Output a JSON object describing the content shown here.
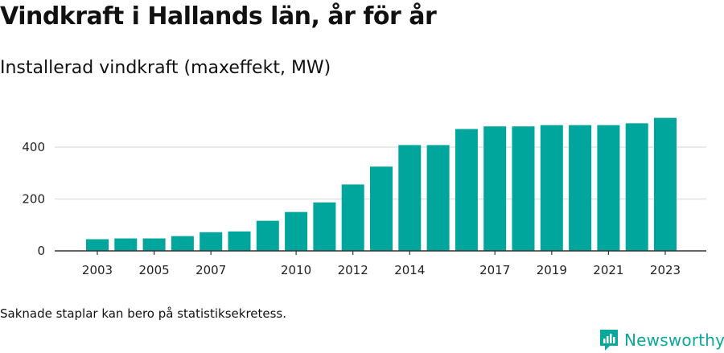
{
  "header": {
    "title": "Vindkraft i Hallands län, år för år",
    "subtitle": "Installerad vindkraft (maxeffekt, MW)"
  },
  "footer": {
    "note": "Saknade staplar kan bero på statistiksekretess.",
    "brand": "Newsworthy",
    "brand_icon": "newsworthy-logo-icon"
  },
  "colors": {
    "bar": "#00a69c",
    "grid": "#dddddd",
    "axis": "#333333",
    "brand": "#0aa89a"
  },
  "chart_data": {
    "type": "bar",
    "title": "Vindkraft i Hallands län, år för år",
    "subtitle": "Installerad vindkraft (maxeffekt, MW)",
    "xlabel": "",
    "ylabel": "",
    "categories": [
      2003,
      2004,
      2005,
      2006,
      2007,
      2008,
      2009,
      2010,
      2011,
      2012,
      2013,
      2014,
      2015,
      2016,
      2017,
      2018,
      2019,
      2020,
      2021,
      2022,
      2023
    ],
    "values": [
      45,
      48,
      48,
      57,
      72,
      75,
      116,
      150,
      187,
      256,
      325,
      408,
      408,
      470,
      480,
      480,
      485,
      485,
      485,
      492,
      513
    ],
    "xticks": [
      2003,
      2005,
      2007,
      2010,
      2012,
      2014,
      2017,
      2019,
      2021,
      2023
    ],
    "yticks": [
      0,
      200,
      400
    ],
    "ylim": [
      0,
      520
    ],
    "grid": true,
    "legend": "none"
  }
}
